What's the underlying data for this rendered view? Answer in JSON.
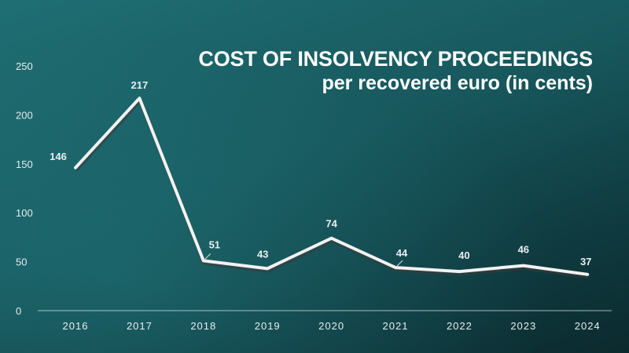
{
  "chart_data": {
    "type": "line",
    "title": "COST OF INSOLVENCY PROCEEDINGS",
    "subtitle": "per recovered euro (in cents)",
    "xlabel": "",
    "ylabel": "",
    "categories": [
      "2016",
      "2017",
      "2018",
      "2019",
      "2020",
      "2021",
      "2022",
      "2023",
      "2024"
    ],
    "series": [
      {
        "values": [
          146,
          217,
          51,
          43,
          74,
          44,
          40,
          46,
          37
        ]
      }
    ],
    "ylim": [
      0,
      250
    ],
    "yticks": [
      0,
      50,
      100,
      150,
      200,
      250
    ],
    "data_labels": true,
    "grid": false,
    "legend": "none",
    "colors": {
      "line": "#f2f2f2",
      "shadow": "#3a3a3a",
      "drop_lines": "#c9d6d6",
      "background_start": "#1f6f74",
      "background_end": "#0b2a2e",
      "text": "#ffffff"
    }
  }
}
